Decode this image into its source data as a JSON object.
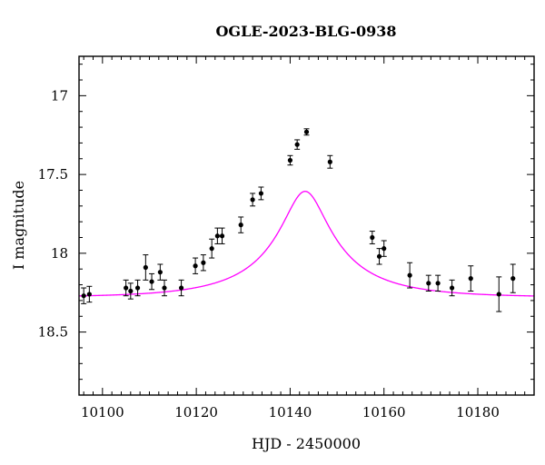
{
  "chart_data": {
    "type": "scatter",
    "title": "OGLE-2023-BLG-0938",
    "xlabel": "HJD - 2450000",
    "ylabel": "I magnitude",
    "xlim": [
      10095,
      10192
    ],
    "ylim": [
      18.9,
      16.75
    ],
    "y_axis_inverted": true,
    "x_ticks": [
      10100,
      10120,
      10140,
      10160,
      10180
    ],
    "y_ticks": [
      17,
      17.5,
      18,
      18.5
    ],
    "x_minor_step": 2,
    "y_minor_step": 0.1,
    "grid": false,
    "legend": "none",
    "series": [
      {
        "kind": "points-with-errorbars",
        "color": "#000000",
        "points": [
          {
            "x": 10096.0,
            "y": 18.27,
            "err": 0.05
          },
          {
            "x": 10097.2,
            "y": 18.26,
            "err": 0.05
          },
          {
            "x": 10105.0,
            "y": 18.22,
            "err": 0.05
          },
          {
            "x": 10106.0,
            "y": 18.24,
            "err": 0.05
          },
          {
            "x": 10107.5,
            "y": 18.22,
            "err": 0.05
          },
          {
            "x": 10109.2,
            "y": 18.09,
            "err": 0.08
          },
          {
            "x": 10110.5,
            "y": 18.18,
            "err": 0.05
          },
          {
            "x": 10112.3,
            "y": 18.12,
            "err": 0.05
          },
          {
            "x": 10113.2,
            "y": 18.22,
            "err": 0.05
          },
          {
            "x": 10116.8,
            "y": 18.22,
            "err": 0.05
          },
          {
            "x": 10119.8,
            "y": 18.08,
            "err": 0.05
          },
          {
            "x": 10121.5,
            "y": 18.06,
            "err": 0.05
          },
          {
            "x": 10123.3,
            "y": 17.97,
            "err": 0.06
          },
          {
            "x": 10124.5,
            "y": 17.89,
            "err": 0.05
          },
          {
            "x": 10125.5,
            "y": 17.89,
            "err": 0.05
          },
          {
            "x": 10129.5,
            "y": 17.82,
            "err": 0.05
          },
          {
            "x": 10132.0,
            "y": 17.66,
            "err": 0.04
          },
          {
            "x": 10133.8,
            "y": 17.62,
            "err": 0.04
          },
          {
            "x": 10140.0,
            "y": 17.41,
            "err": 0.03
          },
          {
            "x": 10141.5,
            "y": 17.31,
            "err": 0.03
          },
          {
            "x": 10143.5,
            "y": 17.23,
            "err": 0.02
          },
          {
            "x": 10148.5,
            "y": 17.42,
            "err": 0.04
          },
          {
            "x": 10157.5,
            "y": 17.9,
            "err": 0.04
          },
          {
            "x": 10159.0,
            "y": 18.02,
            "err": 0.05
          },
          {
            "x": 10160.0,
            "y": 17.97,
            "err": 0.05
          },
          {
            "x": 10165.5,
            "y": 18.14,
            "err": 0.08
          },
          {
            "x": 10169.5,
            "y": 18.19,
            "err": 0.05
          },
          {
            "x": 10171.5,
            "y": 18.19,
            "err": 0.05
          },
          {
            "x": 10174.5,
            "y": 18.22,
            "err": 0.05
          },
          {
            "x": 10178.5,
            "y": 18.16,
            "err": 0.08
          },
          {
            "x": 10184.5,
            "y": 18.26,
            "err": 0.11
          },
          {
            "x": 10187.5,
            "y": 18.16,
            "err": 0.09
          }
        ]
      },
      {
        "kind": "model-curve",
        "color": "#ff00ff",
        "model": {
          "baseline_mag": 18.28,
          "t0": 10143.2,
          "tE": 20.0,
          "u0": 0.23,
          "fs": 0.25
        }
      }
    ]
  }
}
